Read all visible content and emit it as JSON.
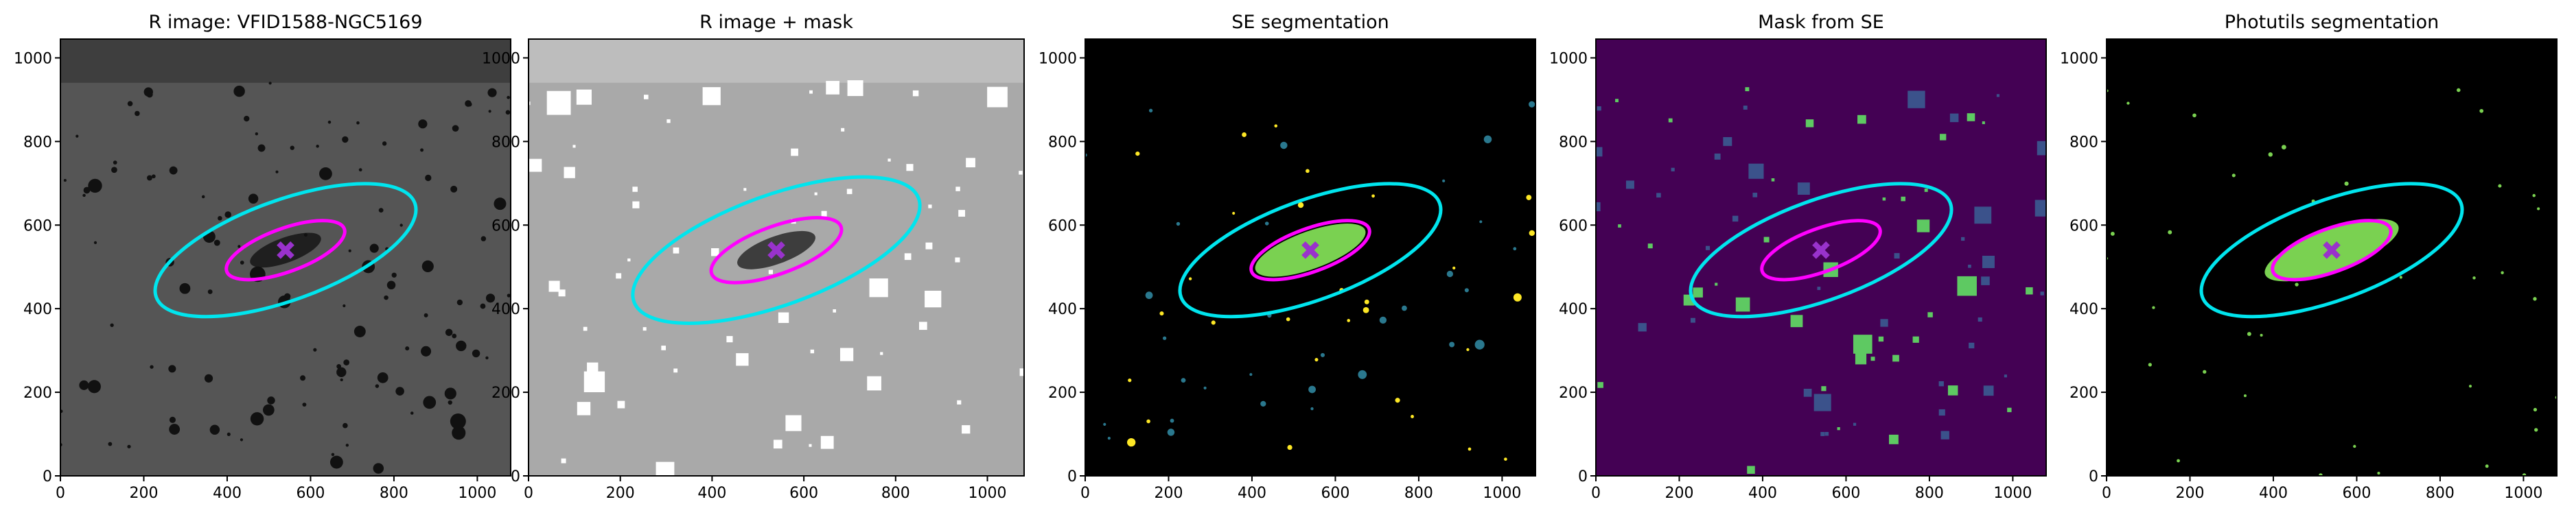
{
  "chart_data": [
    {
      "type": "image",
      "title": "R image: VFID1588-NGC5169",
      "xlim": [
        0,
        1080
      ],
      "ylim": [
        0,
        1045
      ],
      "xticks": [
        0,
        200,
        400,
        600,
        800,
        1000
      ],
      "yticks": [
        0,
        200,
        400,
        600,
        800,
        1000
      ]
    },
    {
      "type": "image",
      "title": "R image + mask",
      "xlim": [
        0,
        1080
      ],
      "ylim": [
        0,
        1045
      ],
      "xticks": [
        0,
        200,
        400,
        600,
        800,
        1000
      ],
      "yticks": [
        0,
        200,
        400,
        600,
        800,
        1000
      ]
    },
    {
      "type": "image",
      "title": "SE segmentation",
      "xlim": [
        0,
        1080
      ],
      "ylim": [
        0,
        1045
      ],
      "xticks": [
        0,
        200,
        400,
        600,
        800,
        1000
      ],
      "yticks": [
        0,
        200,
        400,
        600,
        800,
        1000
      ]
    },
    {
      "type": "image",
      "title": "Mask from SE",
      "xlim": [
        0,
        1080
      ],
      "ylim": [
        0,
        1045
      ],
      "xticks": [
        0,
        200,
        400,
        600,
        800,
        1000
      ],
      "yticks": [
        0,
        200,
        400,
        600,
        800,
        1000
      ]
    },
    {
      "type": "image",
      "title": "Photutils segmentation",
      "xlim": [
        0,
        1080
      ],
      "ylim": [
        0,
        1045
      ],
      "xticks": [
        0,
        200,
        400,
        600,
        800,
        1000
      ],
      "yticks": [
        0,
        200,
        400,
        600,
        800,
        1000
      ]
    }
  ]
}
